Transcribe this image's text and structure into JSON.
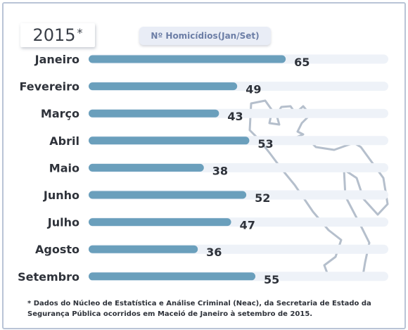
{
  "year_label": "2015",
  "year_marker": "*",
  "series_label": "Nº Homicídios(Jan/Set)",
  "footnote": "* Dados do Núcleo de Estatística e Análise Criminal (Neac), da Secretaria de Estado da Segurança Pública ocorridos em Maceió de Janeiro à setembro de 2015.",
  "colors": {
    "bar": "#6a9fbc",
    "track": "#eef2f8",
    "silhouette": "#b5bfcc",
    "text": "#2e323a"
  },
  "chart_data": {
    "type": "bar",
    "orientation": "horizontal",
    "categories": [
      "Janeiro",
      "Fevereiro",
      "Março",
      "Abril",
      "Maio",
      "Junho",
      "Julho",
      "Agosto",
      "Setembro"
    ],
    "series": [
      {
        "name": "Nº Homicídios(Jan/Set)",
        "values": [
          65,
          49,
          43,
          53,
          38,
          52,
          47,
          36,
          55
        ]
      }
    ],
    "xlim": [
      0,
      100
    ],
    "grid": false,
    "data_labels": true
  }
}
